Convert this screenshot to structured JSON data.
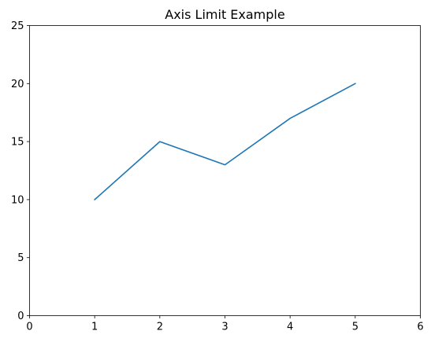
{
  "chart_data": {
    "type": "line",
    "title": "Axis Limit Example",
    "xlabel": "",
    "ylabel": "",
    "xlim": [
      0,
      6
    ],
    "ylim": [
      0,
      25
    ],
    "xticks": [
      0,
      1,
      2,
      3,
      4,
      5,
      6
    ],
    "yticks": [
      0,
      5,
      10,
      15,
      20,
      25
    ],
    "grid": false,
    "series": [
      {
        "x": [
          1,
          2,
          3,
          4,
          5
        ],
        "y": [
          10,
          15,
          13,
          17,
          20
        ],
        "color": "#1f77b4"
      }
    ]
  }
}
